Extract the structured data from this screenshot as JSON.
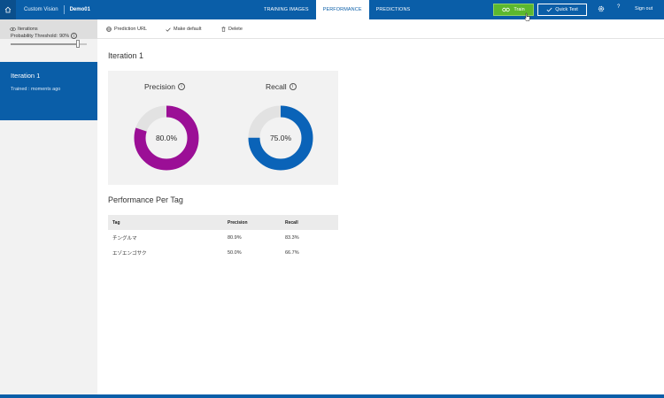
{
  "header": {
    "app_name": "Custom Vision",
    "project_name": "Demo01",
    "tabs": [
      {
        "label": "TRAINING IMAGES",
        "active": false
      },
      {
        "label": "PERFORMANCE",
        "active": true
      },
      {
        "label": "PREDICTIONS",
        "active": false
      }
    ],
    "train_label": "Train",
    "quick_test_label": "Quick Test",
    "help_label": "?",
    "sign_out_label": "Sign out"
  },
  "sidebar": {
    "header_label": "Iterations",
    "threshold_label": "Probability Threshold:",
    "threshold_value": "90%",
    "threshold_fraction": 0.9,
    "iteration": {
      "title": "Iteration 1",
      "subtitle": "Trained : moments ago"
    }
  },
  "toolbar": {
    "prediction_url_label": "Prediction URL",
    "make_default_label": "Make default",
    "delete_label": "Delete"
  },
  "main": {
    "title": "Iteration 1",
    "precision": {
      "label": "Precision",
      "value_text": "80.0%",
      "value": 0.8
    },
    "recall": {
      "label": "Recall",
      "value_text": "75.0%",
      "value": 0.75
    },
    "section_title": "Performance Per Tag",
    "table": {
      "headers": [
        "Tag",
        "Precision",
        "Recall"
      ],
      "rows": [
        [
          "チングルマ",
          "80.9%",
          "83.3%"
        ],
        [
          "エゾエンゴサク",
          "50.0%",
          "66.7%"
        ]
      ]
    }
  },
  "colors": {
    "brand_blue": "#0a5ea8",
    "precision_color": "#9b0f96",
    "recall_color": "#0a63b8",
    "train_green": "#5cb82e"
  }
}
